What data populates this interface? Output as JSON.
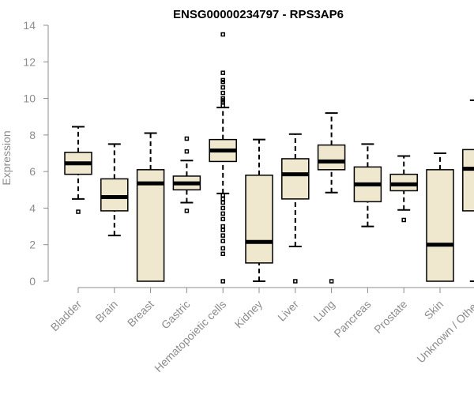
{
  "chart_data": {
    "type": "boxplot",
    "title": "ENSG00000234797 - RPS3AP6",
    "xlabel": "",
    "ylabel": "Expression",
    "ylim": [
      0,
      14
    ],
    "yticks": [
      0,
      2,
      4,
      6,
      8,
      10,
      12,
      14
    ],
    "box_fill": "#efe8cf",
    "categories": [
      "Bladder",
      "Brain",
      "Breast",
      "Gastric",
      "Hematopoietic cells",
      "Kidney",
      "Liver",
      "Lung",
      "Pancreas",
      "Prostate",
      "Skin",
      "Unknown / Other"
    ],
    "boxes": [
      {
        "whislo": 4.5,
        "q1": 5.85,
        "med": 6.45,
        "q3": 7.05,
        "whishi": 8.45,
        "outliers": [
          3.8
        ]
      },
      {
        "whislo": 2.5,
        "q1": 3.85,
        "med": 4.6,
        "q3": 5.6,
        "whishi": 7.5,
        "outliers": []
      },
      {
        "whislo": 0.0,
        "q1": 0.0,
        "med": 5.35,
        "q3": 6.1,
        "whishi": 8.1,
        "outliers": []
      },
      {
        "whislo": 4.3,
        "q1": 5.0,
        "med": 5.35,
        "q3": 5.75,
        "whishi": 6.6,
        "outliers": [
          3.85,
          7.1,
          7.8
        ]
      },
      {
        "whislo": 4.8,
        "q1": 6.55,
        "med": 7.15,
        "q3": 7.75,
        "whishi": 9.5,
        "outliers": [
          13.5,
          11.4,
          11.0,
          10.6,
          10.3,
          10.0,
          9.8,
          9.6,
          9.9,
          10.9,
          4.7,
          4.5,
          4.3,
          4.0,
          3.7,
          3.4,
          3.0,
          2.8,
          2.5,
          2.2,
          1.8,
          1.5,
          0.0
        ]
      },
      {
        "whislo": 0.0,
        "q1": 1.0,
        "med": 2.15,
        "q3": 5.8,
        "whishi": 7.75,
        "outliers": []
      },
      {
        "whislo": 1.9,
        "q1": 4.5,
        "med": 5.85,
        "q3": 6.7,
        "whishi": 8.05,
        "outliers": [
          0.0
        ]
      },
      {
        "whislo": 4.85,
        "q1": 6.1,
        "med": 6.55,
        "q3": 7.45,
        "whishi": 9.2,
        "outliers": [
          0.0
        ]
      },
      {
        "whislo": 3.0,
        "q1": 4.35,
        "med": 5.3,
        "q3": 6.25,
        "whishi": 7.5,
        "outliers": []
      },
      {
        "whislo": 3.9,
        "q1": 4.95,
        "med": 5.3,
        "q3": 5.85,
        "whishi": 6.85,
        "outliers": [
          3.35
        ]
      },
      {
        "whislo": 0.0,
        "q1": 0.0,
        "med": 2.0,
        "q3": 6.1,
        "whishi": 7.0,
        "outliers": []
      },
      {
        "whislo": 0.0,
        "q1": 3.85,
        "med": 6.15,
        "q3": 7.2,
        "whishi": 9.9,
        "outliers": []
      }
    ]
  }
}
